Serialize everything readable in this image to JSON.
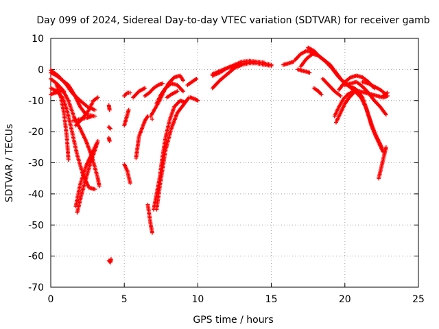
{
  "chart_data": {
    "type": "scatter",
    "title": "Day 099 of 2024, Sidereal Day-to-day VTEC variation (SDTVAR) for receiver gamb",
    "xlabel": "GPS time / hours",
    "ylabel": "SDTVAR / TECUs",
    "xlim": [
      0,
      25
    ],
    "ylim": [
      -70,
      10
    ],
    "xticks": [
      0,
      5,
      10,
      15,
      20,
      25
    ],
    "yticks": [
      10,
      0,
      -10,
      -20,
      -30,
      -40,
      -50,
      -60,
      -70
    ],
    "grid": true,
    "marker": "+",
    "color": "#ff0000",
    "tracks": [
      [
        [
          0.0,
          -0.2
        ],
        [
          0.5,
          -2.0
        ],
        [
          1.0,
          -4.5
        ],
        [
          1.5,
          -7.8
        ],
        [
          2.0,
          -10.0
        ],
        [
          2.5,
          -12.0
        ],
        [
          3.0,
          -13.0
        ]
      ],
      [
        [
          0.0,
          -1.0
        ],
        [
          0.4,
          -2.0
        ],
        [
          0.8,
          -3.5
        ],
        [
          1.2,
          -5.0
        ],
        [
          1.6,
          -8.0
        ],
        [
          2.0,
          -12.0
        ],
        [
          2.4,
          -14.5
        ],
        [
          3.0,
          -15.0
        ]
      ],
      [
        [
          0.0,
          -3.0
        ],
        [
          0.4,
          -4.5
        ],
        [
          0.8,
          -6.5
        ],
        [
          1.2,
          -10.0
        ],
        [
          1.6,
          -15.5
        ],
        [
          2.0,
          -19.0
        ],
        [
          2.4,
          -23.0
        ],
        [
          2.8,
          -28.0
        ],
        [
          3.2,
          -35.0
        ],
        [
          3.3,
          -37.5
        ]
      ],
      [
        [
          0.0,
          -6.0
        ],
        [
          0.4,
          -7.0
        ],
        [
          0.8,
          -9.0
        ],
        [
          1.1,
          -13.0
        ],
        [
          1.4,
          -19.0
        ],
        [
          1.8,
          -27.5
        ],
        [
          2.2,
          -34.0
        ],
        [
          2.6,
          -38.0
        ],
        [
          3.0,
          -38.5
        ]
      ],
      [
        [
          0.0,
          -8.0
        ],
        [
          0.3,
          -7.5
        ],
        [
          0.6,
          -7.0
        ],
        [
          0.9,
          -7.0
        ]
      ],
      [
        [
          0.4,
          -5.0
        ],
        [
          0.7,
          -9.0
        ],
        [
          0.9,
          -14.0
        ],
        [
          1.1,
          -22.0
        ],
        [
          1.2,
          -29.0
        ]
      ],
      [
        [
          1.8,
          -46.0
        ],
        [
          2.1,
          -40.0
        ],
        [
          2.4,
          -35.0
        ],
        [
          2.7,
          -30.0
        ],
        [
          3.0,
          -26.0
        ],
        [
          3.2,
          -23.0
        ]
      ],
      [
        [
          1.7,
          -44.0
        ],
        [
          2.0,
          -37.0
        ],
        [
          2.4,
          -31.0
        ],
        [
          2.8,
          -27.0
        ],
        [
          3.1,
          -24.0
        ]
      ],
      [
        [
          1.5,
          -16.5
        ],
        [
          2.0,
          -16.0
        ],
        [
          2.5,
          -15.5
        ],
        [
          2.8,
          -15.0
        ]
      ],
      [
        [
          1.7,
          -18.0
        ],
        [
          2.2,
          -15.5
        ],
        [
          2.6,
          -13.0
        ],
        [
          2.9,
          -10.0
        ],
        [
          3.2,
          -9.0
        ]
      ],
      [
        [
          3.95,
          -11.5
        ],
        [
          4.0,
          -13.0
        ]
      ],
      [
        [
          3.95,
          -18.5
        ],
        [
          4.05,
          -19.0
        ]
      ],
      [
        [
          3.95,
          -22.0
        ],
        [
          4.0,
          -23.0
        ]
      ],
      [
        [
          3.95,
          -61.5
        ],
        [
          4.05,
          -62.0
        ],
        [
          4.1,
          -61.0
        ]
      ],
      [
        [
          5.0,
          -30.5
        ],
        [
          5.2,
          -32.5
        ],
        [
          5.4,
          -36.5
        ]
      ],
      [
        [
          5.0,
          -18.0
        ],
        [
          5.15,
          -15.5
        ],
        [
          5.3,
          -13.0
        ]
      ],
      [
        [
          5.0,
          -8.5
        ],
        [
          5.2,
          -7.5
        ],
        [
          5.4,
          -7.5
        ]
      ],
      [
        [
          5.8,
          -28.5
        ],
        [
          5.9,
          -25.0
        ],
        [
          6.0,
          -21.5
        ],
        [
          6.2,
          -19.0
        ],
        [
          6.4,
          -16.5
        ],
        [
          6.6,
          -15.0
        ]
      ],
      [
        [
          5.6,
          -9.0
        ],
        [
          5.8,
          -8.0
        ],
        [
          6.0,
          -7.0
        ],
        [
          6.2,
          -6.5
        ],
        [
          6.4,
          -6.0
        ]
      ],
      [
        [
          6.4,
          -8.5
        ],
        [
          6.7,
          -7.5
        ],
        [
          7.0,
          -6.0
        ],
        [
          7.3,
          -5.0
        ],
        [
          7.6,
          -4.5
        ]
      ],
      [
        [
          6.6,
          -43.5
        ],
        [
          6.8,
          -50.0
        ],
        [
          6.9,
          -52.5
        ]
      ],
      [
        [
          6.9,
          -16.0
        ]
      ],
      [
        [
          7.0,
          -45.0
        ],
        [
          7.2,
          -40.0
        ],
        [
          7.4,
          -35.0
        ],
        [
          7.6,
          -28.0
        ],
        [
          7.8,
          -22.0
        ],
        [
          8.1,
          -16.0
        ],
        [
          8.4,
          -12.0
        ],
        [
          8.8,
          -10.0
        ],
        [
          9.1,
          -10.5
        ]
      ],
      [
        [
          7.2,
          -45.0
        ],
        [
          7.4,
          -38.0
        ],
        [
          7.6,
          -32.0
        ],
        [
          7.8,
          -26.0
        ],
        [
          8.2,
          -19.0
        ],
        [
          8.6,
          -14.0
        ],
        [
          9.0,
          -11.5
        ],
        [
          9.4,
          -9.0
        ]
      ],
      [
        [
          6.8,
          -15.0
        ],
        [
          7.1,
          -12.5
        ],
        [
          7.4,
          -10.0
        ],
        [
          7.7,
          -7.0
        ],
        [
          8.0,
          -4.5
        ],
        [
          8.4,
          -2.5
        ],
        [
          8.8,
          -2.0
        ],
        [
          9.0,
          -3.5
        ]
      ],
      [
        [
          7.2,
          -11.0
        ],
        [
          7.5,
          -8.0
        ],
        [
          7.8,
          -6.0
        ],
        [
          8.2,
          -4.5
        ],
        [
          8.6,
          -5.0
        ],
        [
          9.0,
          -7.0
        ]
      ],
      [
        [
          7.9,
          -9.0
        ],
        [
          8.2,
          -8.0
        ],
        [
          8.6,
          -7.0
        ]
      ],
      [
        [
          9.3,
          -5.0
        ],
        [
          9.6,
          -4.0
        ],
        [
          9.9,
          -3.0
        ]
      ],
      [
        [
          9.5,
          -9.0
        ],
        [
          9.8,
          -9.5
        ],
        [
          10.0,
          -10.0
        ]
      ],
      [
        [
          11.0,
          -6.0
        ],
        [
          11.5,
          -3.5
        ],
        [
          12.0,
          -1.5
        ],
        [
          12.5,
          0.5
        ],
        [
          13.0,
          1.5
        ],
        [
          13.5,
          2.0
        ],
        [
          14.0,
          2.0
        ],
        [
          14.5,
          1.5
        ],
        [
          15.0,
          1.2
        ]
      ],
      [
        [
          11.0,
          -2.0
        ],
        [
          11.5,
          -1.0
        ],
        [
          12.0,
          0.5
        ],
        [
          12.5,
          1.5
        ],
        [
          13.0,
          2.5
        ],
        [
          13.5,
          2.8
        ],
        [
          14.0,
          2.5
        ],
        [
          14.5,
          2.0
        ],
        [
          15.0,
          1.5
        ]
      ],
      [
        [
          11.0,
          -1.5
        ],
        [
          11.5,
          -0.5
        ],
        [
          12.0,
          0.5
        ],
        [
          12.5,
          1.0
        ],
        [
          13.0,
          1.8
        ],
        [
          13.5,
          2.3
        ],
        [
          14.0,
          2.5
        ],
        [
          14.5,
          2.2
        ]
      ],
      [
        [
          15.8,
          1.5
        ],
        [
          16.2,
          2.0
        ],
        [
          16.5,
          2.5
        ]
      ],
      [
        [
          16.6,
          3.0
        ],
        [
          17.0,
          5.0
        ],
        [
          17.4,
          6.0
        ],
        [
          17.8,
          5.5
        ],
        [
          18.2,
          4.5
        ]
      ],
      [
        [
          17.0,
          1.0
        ],
        [
          17.4,
          3.5
        ],
        [
          17.8,
          5.0
        ],
        [
          18.2,
          4.5
        ],
        [
          18.6,
          3.0
        ],
        [
          19.0,
          1.5
        ],
        [
          19.4,
          -1.0
        ],
        [
          19.8,
          -3.5
        ],
        [
          20.2,
          -5.0
        ],
        [
          20.6,
          -6.5
        ],
        [
          21.0,
          -8.5
        ]
      ],
      [
        [
          17.5,
          7.0
        ],
        [
          17.9,
          6.0
        ],
        [
          18.3,
          4.0
        ],
        [
          18.7,
          2.5
        ],
        [
          19.1,
          0.5
        ],
        [
          19.5,
          -2.0
        ],
        [
          19.9,
          -4.0
        ],
        [
          20.3,
          -5.5
        ],
        [
          20.7,
          -7.0
        ],
        [
          21.2,
          -9.5
        ]
      ],
      [
        [
          16.8,
          0.0
        ],
        [
          17.2,
          -0.5
        ],
        [
          17.6,
          -1.0
        ]
      ],
      [
        [
          17.9,
          -6.0
        ],
        [
          18.2,
          -7.0
        ],
        [
          18.4,
          -8.0
        ]
      ],
      [
        [
          18.5,
          -3.0
        ],
        [
          18.9,
          -5.0
        ],
        [
          19.3,
          -7.0
        ],
        [
          19.7,
          -8.5
        ]
      ],
      [
        [
          19.4,
          -17.0
        ],
        [
          19.7,
          -14.0
        ],
        [
          20.0,
          -11.0
        ],
        [
          20.3,
          -9.0
        ],
        [
          20.6,
          -7.5
        ]
      ],
      [
        [
          19.3,
          -15.0
        ],
        [
          19.6,
          -12.0
        ],
        [
          19.9,
          -9.5
        ],
        [
          20.2,
          -8.0
        ],
        [
          20.6,
          -7.0
        ]
      ],
      [
        [
          19.6,
          -6.5
        ],
        [
          20.0,
          -4.0
        ],
        [
          20.4,
          -2.5
        ],
        [
          20.8,
          -2.0
        ],
        [
          21.2,
          -2.5
        ],
        [
          21.6,
          -4.0
        ],
        [
          22.0,
          -6.0
        ]
      ],
      [
        [
          20.0,
          -5.0
        ],
        [
          20.4,
          -4.5
        ],
        [
          20.8,
          -4.0
        ],
        [
          21.2,
          -5.5
        ],
        [
          21.6,
          -7.5
        ],
        [
          22.0,
          -10.0
        ],
        [
          22.4,
          -12.0
        ],
        [
          22.8,
          -14.5
        ]
      ],
      [
        [
          20.6,
          -6.0
        ],
        [
          21.0,
          -8.0
        ],
        [
          21.4,
          -12.0
        ],
        [
          21.7,
          -16.0
        ],
        [
          22.0,
          -20.0
        ],
        [
          22.3,
          -23.0
        ],
        [
          22.5,
          -25.0
        ]
      ],
      [
        [
          20.4,
          -5.5
        ],
        [
          20.8,
          -6.5
        ],
        [
          21.2,
          -9.0
        ],
        [
          21.5,
          -13.0
        ],
        [
          21.8,
          -18.0
        ],
        [
          22.1,
          -21.5
        ],
        [
          22.4,
          -24.5
        ],
        [
          22.6,
          -26.5
        ]
      ],
      [
        [
          21.2,
          -4.0
        ],
        [
          21.6,
          -4.5
        ],
        [
          22.0,
          -5.5
        ],
        [
          22.4,
          -6.5
        ],
        [
          22.8,
          -8.0
        ]
      ],
      [
        [
          21.0,
          -7.0
        ],
        [
          21.4,
          -7.5
        ],
        [
          21.8,
          -8.0
        ],
        [
          22.2,
          -8.5
        ],
        [
          22.6,
          -9.0
        ],
        [
          22.9,
          -8.5
        ]
      ],
      [
        [
          22.3,
          -35.0
        ],
        [
          22.5,
          -31.0
        ],
        [
          22.7,
          -27.0
        ],
        [
          22.8,
          -25.0
        ]
      ],
      [
        [
          22.6,
          -8.5
        ],
        [
          22.9,
          -7.5
        ]
      ]
    ]
  }
}
